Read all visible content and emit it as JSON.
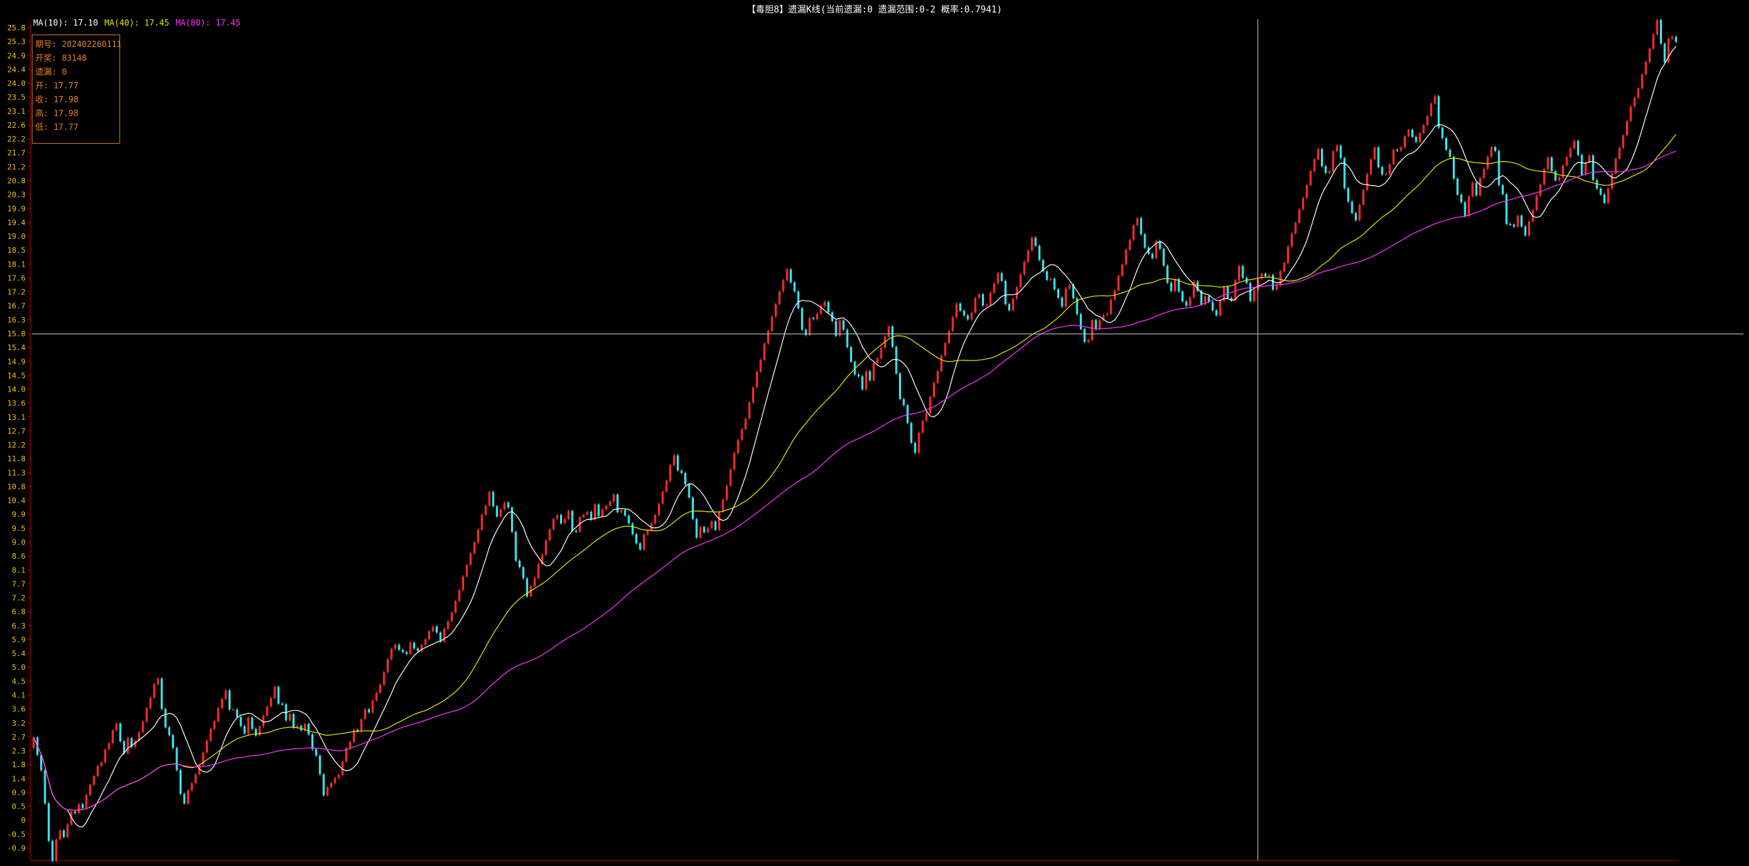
{
  "title": "【毒胆8】遗漏K线(当前遗漏:0 遗漏范围:0-2 概率:0.7941)",
  "ma_legend": {
    "ma10_label": "MA(10): 17.10",
    "ma40_label": "MA(40): 17.45",
    "ma80_label": "MA(80): 17.45"
  },
  "info_box": {
    "period": "期号: 202402260111",
    "draw": "开奖: 83148",
    "miss": "遗漏: 0",
    "open": "开: 17.77",
    "close": "收: 17.98",
    "high": "高: 17.98",
    "low": "低: 17.77"
  },
  "colors": {
    "up": "#ff2a2a",
    "down": "#38e6ee",
    "ma10": "#ffffff",
    "ma40": "#e6e600",
    "ma80": "#ff33ff",
    "axis_text": "#e8c21c",
    "axis_line": "#b80000",
    "crosshair": "#c8c8c8"
  },
  "chart_data": {
    "type": "candlestick",
    "series_name": "遗漏K线",
    "y_ticks": [
      "25.8",
      "25.3",
      "24.9",
      "24.4",
      "24.0",
      "23.5",
      "23.1",
      "22.6",
      "22.2",
      "21.7",
      "21.2",
      "20.8",
      "20.3",
      "19.9",
      "19.4",
      "19.0",
      "18.5",
      "18.1",
      "17.6",
      "17.2",
      "16.7",
      "16.3",
      "15.8",
      "15.4",
      "14.9",
      "14.5",
      "14.0",
      "13.6",
      "13.1",
      "12.7",
      "12.2",
      "11.8",
      "11.3",
      "10.8",
      "10.4",
      "9.9",
      "9.5",
      "9.0",
      "8.6",
      "8.1",
      "7.7",
      "7.2",
      "6.8",
      "6.3",
      "5.9",
      "5.4",
      "5.0",
      "4.5",
      "4.1",
      "3.6",
      "3.2",
      "2.7",
      "2.3",
      "1.8",
      "1.4",
      "0.9",
      "0.5",
      "0",
      "-0.5",
      "-0.9"
    ],
    "ylim": [
      -0.9,
      25.8
    ],
    "crosshair": {
      "index": 325,
      "price": 15.9
    },
    "moving_averages": [
      {
        "name": "MA(10)",
        "period": 10,
        "last": 17.1
      },
      {
        "name": "MA(40)",
        "period": 40,
        "last": 17.45
      },
      {
        "name": "MA(80)",
        "period": 80,
        "last": 17.45
      }
    ],
    "closes": [
      2.93,
      2.36,
      1.87,
      0.8,
      -0.4,
      -1.04,
      -0.36,
      -0.07,
      -0.28,
      0.13,
      0.54,
      0.49,
      0.78,
      0.66,
      1.08,
      1.4,
      1.68,
      2.01,
      2.12,
      2.54,
      2.74,
      3.15,
      3.37,
      2.8,
      2.41,
      2.9,
      2.62,
      2.82,
      3.09,
      3.43,
      3.86,
      4.2,
      4.64,
      4.82,
      3.84,
      3.25,
      3.0,
      2.59,
      1.87,
      1.11,
      0.8,
      1.22,
      1.45,
      1.74,
      2.04,
      2.44,
      2.82,
      3.2,
      3.44,
      3.87,
      4.16,
      4.44,
      3.82,
      3.82,
      3.58,
      3.29,
      3.05,
      3.56,
      3.2,
      2.99,
      3.28,
      3.62,
      3.92,
      4.19,
      4.55,
      4.01,
      3.99,
      3.47,
      3.68,
      3.23,
      3.3,
      3.15,
      3.36,
      3.02,
      2.55,
      2.34,
      1.74,
      1.06,
      1.32,
      1.46,
      1.62,
      1.72,
      2.15,
      2.58,
      2.78,
      3.17,
      3.11,
      3.51,
      3.83,
      3.73,
      4.11,
      4.36,
      4.62,
      5.02,
      5.44,
      5.78,
      5.91,
      5.74,
      5.67,
      5.61,
      5.97,
      5.79,
      5.7,
      5.9,
      6.08,
      6.34,
      6.49,
      6.3,
      6.01,
      6.42,
      6.66,
      6.94,
      7.31,
      7.67,
      8.1,
      8.47,
      8.84,
      9.2,
      9.6,
      10.09,
      10.38,
      10.82,
      10.36,
      10.03,
      10.26,
      10.48,
      10.32,
      9.54,
      8.61,
      8.4,
      8.04,
      7.46,
      7.79,
      8.05,
      8.5,
      8.8,
      9.26,
      9.62,
      9.95,
      10.08,
      9.81,
      9.95,
      10.21,
      9.57,
      9.54,
      10.01,
      10.09,
      10.18,
      9.93,
      10.42,
      10.05,
      10.26,
      10.38,
      10.51,
      10.74,
      10.17,
      10.24,
      10.06,
      9.81,
      9.46,
      9.17,
      8.97,
      9.45,
      9.59,
      9.81,
      10.08,
      10.44,
      10.83,
      11.18,
      11.68,
      12.0,
      11.51,
      11.43,
      11.06,
      10.64,
      9.95,
      9.35,
      9.69,
      9.52,
      9.66,
      9.87,
      9.6,
      10.18,
      10.57,
      11.02,
      11.55,
      12.07,
      12.5,
      12.84,
      13.18,
      13.7,
      14.18,
      14.69,
      15.07,
      15.6,
      16.0,
      16.46,
      16.86,
      17.27,
      17.63,
      17.98,
      17.56,
      17.27,
      16.73,
      16.04,
      15.87,
      16.42,
      16.38,
      16.55,
      16.8,
      16.93,
      16.6,
      16.32,
      15.84,
      16.34,
      16.04,
      15.48,
      15.01,
      14.6,
      14.54,
      14.12,
      14.7,
      14.41,
      14.96,
      15.12,
      15.46,
      15.81,
      16.14,
      15.49,
      14.63,
      13.81,
      13.61,
      13.04,
      12.4,
      12.08,
      12.73,
      13.11,
      13.35,
      13.88,
      14.33,
      14.71,
      15.21,
      15.61,
      16.0,
      16.44,
      16.88,
      16.65,
      16.5,
      16.37,
      16.59,
      17.06,
      17.18,
      16.82,
      16.85,
      17.23,
      17.53,
      17.86,
      17.61,
      16.86,
      16.66,
      17.04,
      17.41,
      17.82,
      18.22,
      18.59,
      19.0,
      18.74,
      18.28,
      17.92,
      17.64,
      17.68,
      17.34,
      17.07,
      16.78,
      17.36,
      17.48,
      17.05,
      16.54,
      16.06,
      15.65,
      15.71,
      16.35,
      16.05,
      16.34,
      16.51,
      16.55,
      17.01,
      17.3,
      17.77,
      18.13,
      18.61,
      18.93,
      19.4,
      19.63,
      19.11,
      18.68,
      18.48,
      18.34,
      18.89,
      18.64,
      18.1,
      17.55,
      17.28,
      17.67,
      17.27,
      16.95,
      16.81,
      17.08,
      17.59,
      17.29,
      16.85,
      17.12,
      16.93,
      16.66,
      16.5,
      16.97,
      17.43,
      17.06,
      16.98,
      17.63,
      18.09,
      17.71,
      17.54,
      16.96,
      17.31,
      17.68,
      17.84,
      17.76,
      17.8,
      17.33,
      17.47,
      17.92,
      18.19,
      18.72,
      19.13,
      19.48,
      19.91,
      20.28,
      20.69,
      21.14,
      21.52,
      21.85,
      21.3,
      21.08,
      21.13,
      21.78,
      21.96,
      21.56,
      20.59,
      20.16,
      19.79,
      19.56,
      20.06,
      20.53,
      21.05,
      21.52,
      21.9,
      21.27,
      21.03,
      21.05,
      21.36,
      21.83,
      21.8,
      21.91,
      22.26,
      22.47,
      22.24,
      22.08,
      22.36,
      22.62,
      22.91,
      23.31,
      23.55,
      22.54,
      22.2,
      21.83,
      21.6,
      20.9,
      20.38,
      20.14,
      19.69,
      20.33,
      20.76,
      20.36,
      20.92,
      21.21,
      21.6,
      21.91,
      21.79,
      20.69,
      20.4,
      19.44,
      19.42,
      19.35,
      19.71,
      19.36,
      19.07,
      19.52,
      19.89,
      20.35,
      20.71,
      21.2,
      21.58,
      21.14,
      20.84,
      20.94,
      21.32,
      21.59,
      21.87,
      22.11,
      21.66,
      21.02,
      21.41,
      21.65,
      20.85,
      20.58,
      20.39,
      20.12,
      20.58,
      21.06,
      21.54,
      21.89,
      22.29,
      22.75,
      23.22,
      23.5,
      23.8,
      24.25,
      24.65,
      25.08,
      25.54,
      26.0,
      25.24,
      24.64,
      25.4,
      25.46,
      25.3
    ]
  }
}
